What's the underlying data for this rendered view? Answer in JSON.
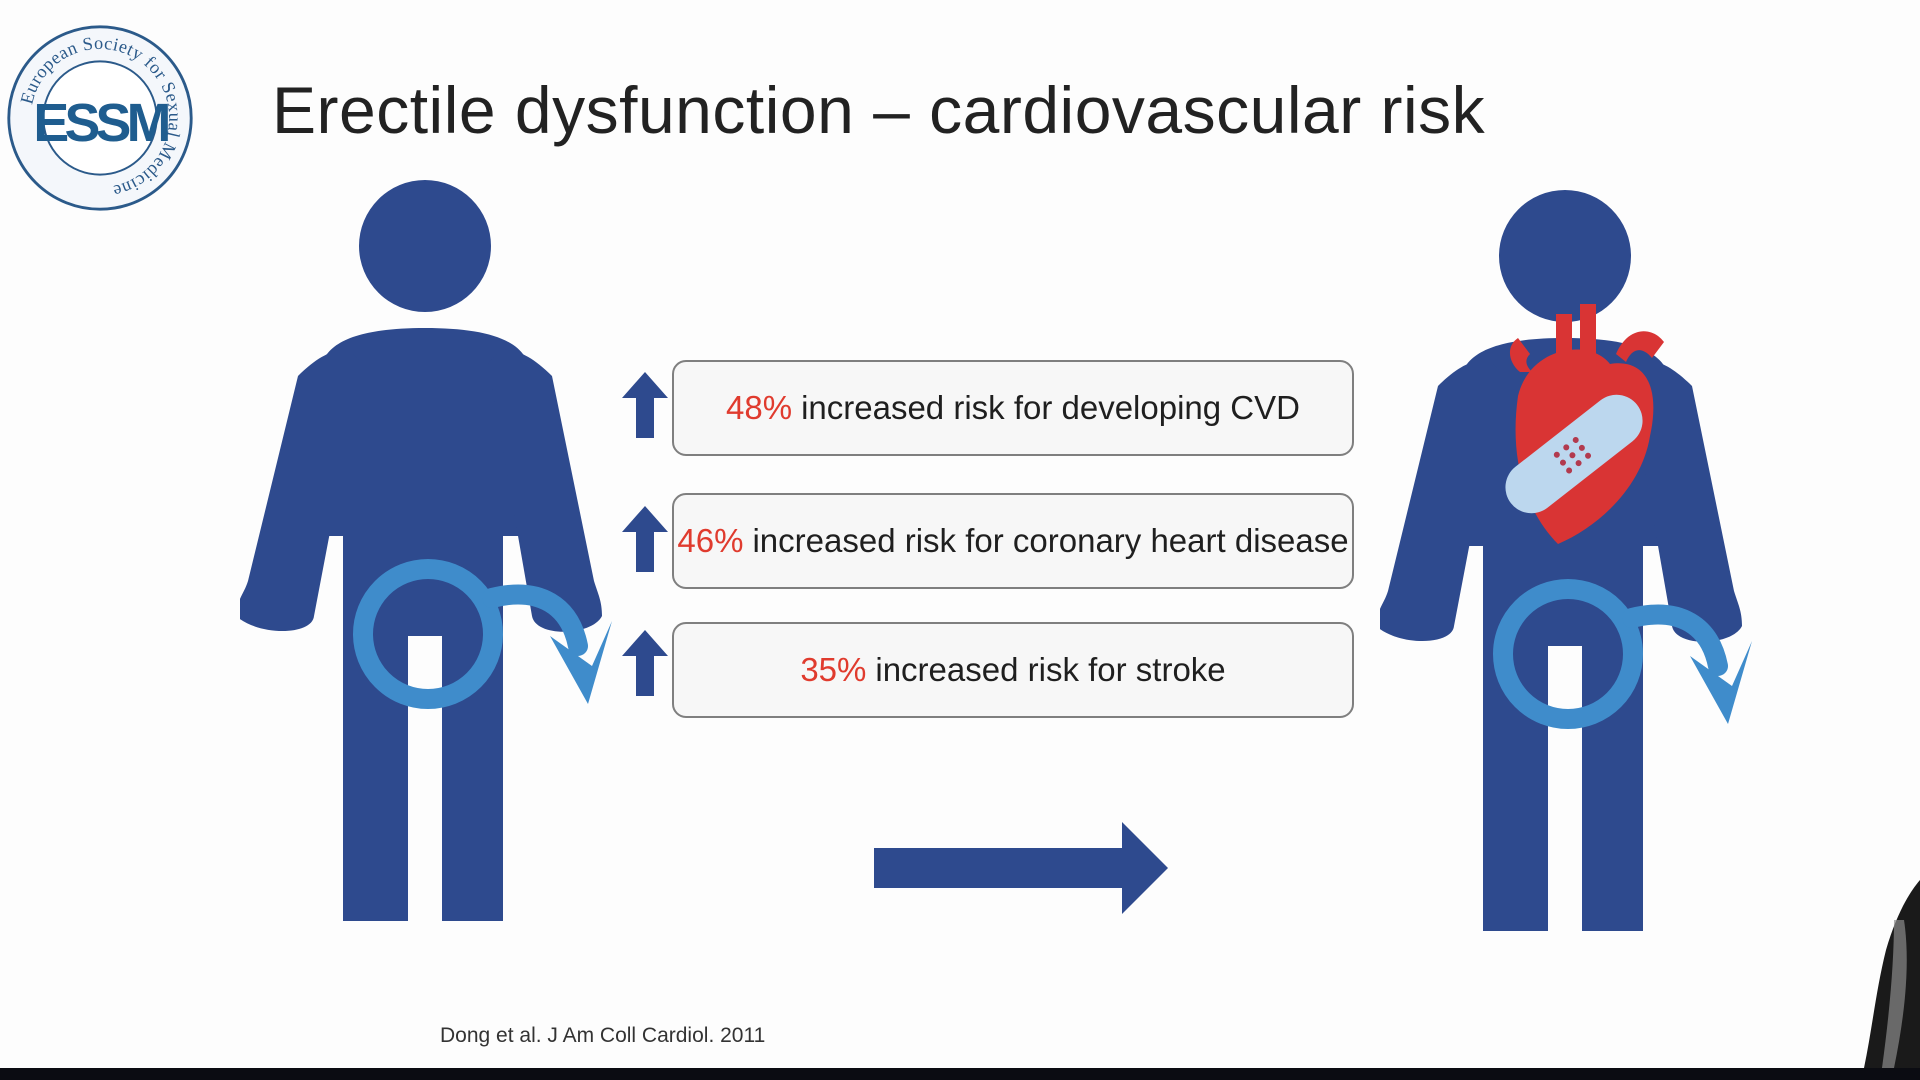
{
  "slide": {
    "title": "Erectile dysfunction – cardiovascular risk",
    "citation": "Dong et al. J Am Coll Cardiol. 2011"
  },
  "logo": {
    "org_name": "European Society for Sexual Medicine",
    "abbreviation": "ESSM"
  },
  "risks": [
    {
      "percent": "48%",
      "text": "increased risk for developing CVD"
    },
    {
      "percent": "46%",
      "text": "increased risk for coronary heart disease"
    },
    {
      "percent": "35%",
      "text": "increased risk for stroke"
    }
  ],
  "icons": {
    "left_figure": "male-figure-with-male-symbol-icon",
    "right_figure": "male-figure-with-bandaged-heart-icon",
    "risk_arrow": "up-arrow-icon",
    "progression_arrow": "right-arrow-icon"
  },
  "colors": {
    "figure_blue": "#2e4a8e",
    "symbol_blue": "#3f8ccb",
    "percent_red": "#e03b2e",
    "heart_red": "#d93434",
    "bandage_light_blue": "#bcd7ee",
    "title_text": "#222222"
  }
}
